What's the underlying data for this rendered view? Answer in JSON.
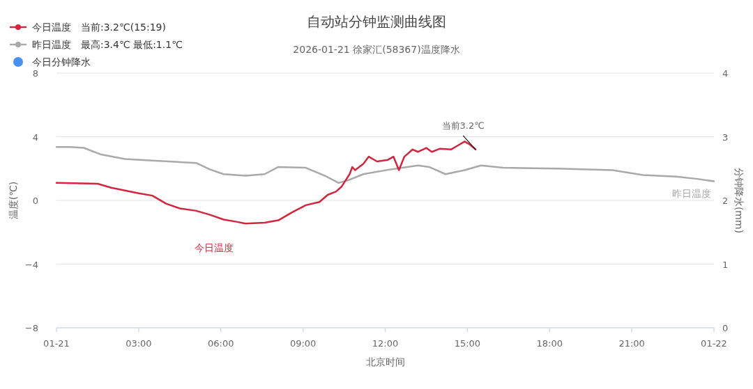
{
  "chart_data": {
    "type": "line",
    "title": "自动站分钟监测曲线图",
    "subtitle": "2026-01-21 徐家汇(58367)温度降水",
    "xlabel": "北京时间",
    "ylabel": "温度(℃)",
    "y2label": "分钟降水(mm)",
    "xlim": [
      0,
      24
    ],
    "xticks": [
      {
        "value": 0,
        "label": "01-21"
      },
      {
        "value": 3,
        "label": "03:00"
      },
      {
        "value": 6,
        "label": "06:00"
      },
      {
        "value": 9,
        "label": "09:00"
      },
      {
        "value": 12,
        "label": "12:00"
      },
      {
        "value": 15,
        "label": "15:00"
      },
      {
        "value": 18,
        "label": "18:00"
      },
      {
        "value": 21,
        "label": "21:00"
      },
      {
        "value": 24,
        "label": "01-22"
      }
    ],
    "ylim": [
      -8,
      8
    ],
    "yticks": [
      -8,
      -4,
      0,
      4,
      8
    ],
    "y2lim": [
      0,
      4
    ],
    "y2ticks": [
      0,
      1,
      2,
      3,
      4
    ],
    "grid": "y",
    "legend": "top left",
    "series": [
      {
        "name": "今日温度　当前:3.2℃(15:19)",
        "color": "#d0263f",
        "x": [
          0,
          1.5,
          2.0,
          3.0,
          3.5,
          4.0,
          4.5,
          5.1,
          5.6,
          6.1,
          6.6,
          6.9,
          7.6,
          8.1,
          8.6,
          9.1,
          9.6,
          9.9,
          10.2,
          10.4,
          10.7,
          10.8,
          10.9,
          11.2,
          11.4,
          11.7,
          12.1,
          12.3,
          12.5,
          12.7,
          13.0,
          13.2,
          13.5,
          13.7,
          14.0,
          14.4,
          14.6,
          14.9,
          15.1,
          15.3
        ],
        "values": [
          1.1,
          1.05,
          0.8,
          0.45,
          0.3,
          -0.2,
          -0.5,
          -0.65,
          -0.9,
          -1.2,
          -1.35,
          -1.45,
          -1.4,
          -1.25,
          -0.75,
          -0.3,
          -0.1,
          0.35,
          0.55,
          0.85,
          1.65,
          2.1,
          1.9,
          2.3,
          2.75,
          2.45,
          2.55,
          2.75,
          1.9,
          2.75,
          3.2,
          3.05,
          3.3,
          3.05,
          3.25,
          3.2,
          3.4,
          3.7,
          3.5,
          3.2
        ]
      },
      {
        "name": "昨日温度　最高:3.4℃ 最低:1.1℃",
        "color": "#a9a9a9",
        "x": [
          0,
          0.5,
          1.0,
          1.6,
          2.5,
          3.5,
          5.1,
          5.6,
          6.1,
          6.9,
          7.6,
          8.1,
          9.1,
          9.8,
          10.3,
          10.7,
          11.2,
          12.2,
          13.2,
          13.6,
          14.2,
          14.9,
          15.5,
          16.3,
          18.3,
          20.3,
          21.4,
          22.6,
          23.4,
          24
        ],
        "values": [
          3.35,
          3.35,
          3.3,
          2.9,
          2.6,
          2.5,
          2.35,
          1.95,
          1.65,
          1.55,
          1.65,
          2.1,
          2.05,
          1.55,
          1.1,
          1.3,
          1.65,
          1.95,
          2.2,
          2.1,
          1.65,
          1.9,
          2.2,
          2.05,
          2.0,
          1.9,
          1.6,
          1.5,
          1.35,
          1.2
        ]
      },
      {
        "name": "今日分钟降水",
        "color": "#4a90f0"
      }
    ],
    "annotations": [
      {
        "text": "当前3.2℃",
        "x": 15.3,
        "y": 3.2
      },
      {
        "text": "今日温度",
        "x": 6.6,
        "y": -1.35
      },
      {
        "text": "昨日温度",
        "x": 24,
        "y": 1.2
      }
    ]
  }
}
